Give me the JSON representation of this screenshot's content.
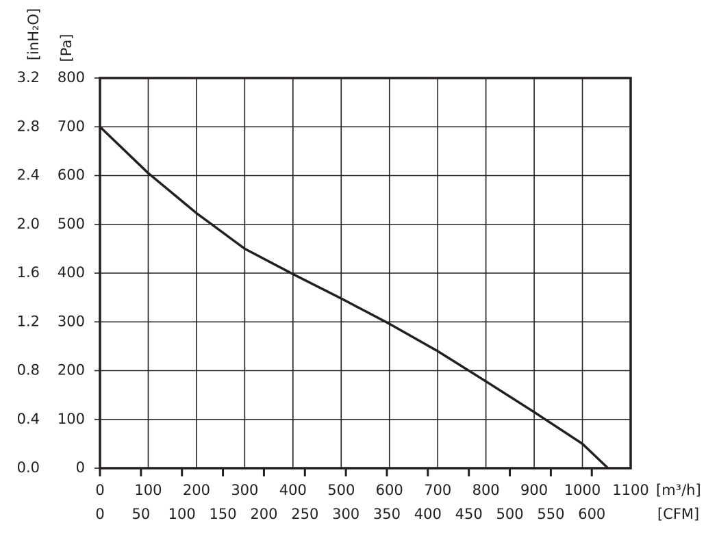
{
  "chart_data": {
    "type": "line",
    "y_label": "[Pa]",
    "y2_label": "[inH₂O]",
    "x_label": "[m³/h]",
    "x2_label": "[CFM]",
    "x": [
      0,
      100,
      200,
      300,
      400,
      500,
      600,
      700,
      800,
      900,
      1000,
      1053
    ],
    "series": [
      {
        "name": "Pa",
        "color": "#231f20",
        "values": [
          700,
          605,
          523,
          450,
          398,
          348,
          296,
          240,
          178,
          115,
          50,
          0
        ]
      }
    ],
    "xlim": [
      0,
      1100
    ],
    "xticks": [
      0,
      100,
      200,
      300,
      400,
      500,
      600,
      700,
      800,
      900,
      1000,
      1100
    ],
    "x2lim": [
      0,
      647.4
    ],
    "x2ticks": [
      0,
      50,
      100,
      150,
      200,
      250,
      300,
      350,
      400,
      450,
      500,
      550,
      600
    ],
    "ylim": [
      0,
      800
    ],
    "yticks": [
      0,
      100,
      200,
      300,
      400,
      500,
      600,
      700,
      800
    ],
    "y2lim": [
      0,
      3.2
    ],
    "y2ticks": [
      {
        "value": 0,
        "label": "0.0"
      },
      0.4,
      0.8,
      1.2,
      1.6,
      {
        "value": 2,
        "label": "2.0"
      },
      2.4,
      2.8,
      3.2
    ],
    "grid": true
  }
}
